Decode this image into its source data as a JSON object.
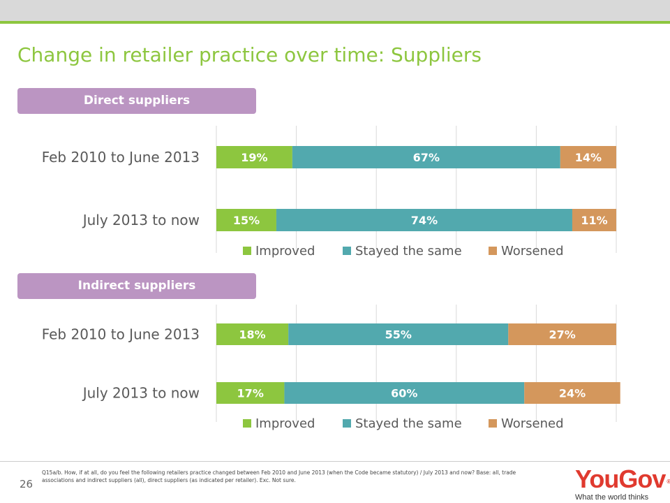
{
  "slide": {
    "title": "Change in retailer practice over time: Suppliers",
    "page_number": "26",
    "footnote": "Q15a/b. How, if at all, do you feel the following retailers practice changed between Feb 2010 and June 2013 (when the Code became statutory) / July 2013 and now? Base: all, trade associations and indirect suppliers (all), direct suppliers (as indicated per retailer). Exc. Not sure."
  },
  "logo": {
    "brand": "YouGov",
    "registered": "®",
    "tagline": "What the world thinks"
  },
  "colors": {
    "improved": "#8dc63f",
    "stayed": "#52a9ae",
    "worsened": "#d4975c",
    "title": "#8dc63f",
    "section": "#bb95c2"
  },
  "chart_data": [
    {
      "type": "bar",
      "orientation": "horizontal",
      "stacked": true,
      "section_label": "Direct suppliers",
      "categories": [
        "Feb 2010 to June 2013",
        "July 2013 to now"
      ],
      "series": [
        {
          "name": "Improved",
          "values": [
            19,
            15
          ],
          "labels": [
            "19%",
            "15%"
          ],
          "color": "#8dc63f"
        },
        {
          "name": "Stayed the same",
          "values": [
            67,
            74
          ],
          "labels": [
            "67%",
            "74%"
          ],
          "color": "#52a9ae"
        },
        {
          "name": "Worsened",
          "values": [
            14,
            11
          ],
          "labels": [
            "14%",
            "11%"
          ],
          "color": "#d4975c"
        }
      ],
      "xlim": [
        0,
        100
      ],
      "grid": true,
      "legend_position": "bottom"
    },
    {
      "type": "bar",
      "orientation": "horizontal",
      "stacked": true,
      "section_label": "Indirect suppliers",
      "categories": [
        "Feb 2010 to June 2013",
        "July 2013 to now"
      ],
      "series": [
        {
          "name": "Improved",
          "values": [
            18,
            17
          ],
          "labels": [
            "18%",
            "17%"
          ],
          "color": "#8dc63f"
        },
        {
          "name": "Stayed the same",
          "values": [
            55,
            60
          ],
          "labels": [
            "55%",
            "60%"
          ],
          "color": "#52a9ae"
        },
        {
          "name": "Worsened",
          "values": [
            27,
            24
          ],
          "labels": [
            "27%",
            "24%"
          ],
          "color": "#d4975c"
        }
      ],
      "xlim": [
        0,
        100
      ],
      "grid": true,
      "legend_position": "bottom"
    }
  ]
}
